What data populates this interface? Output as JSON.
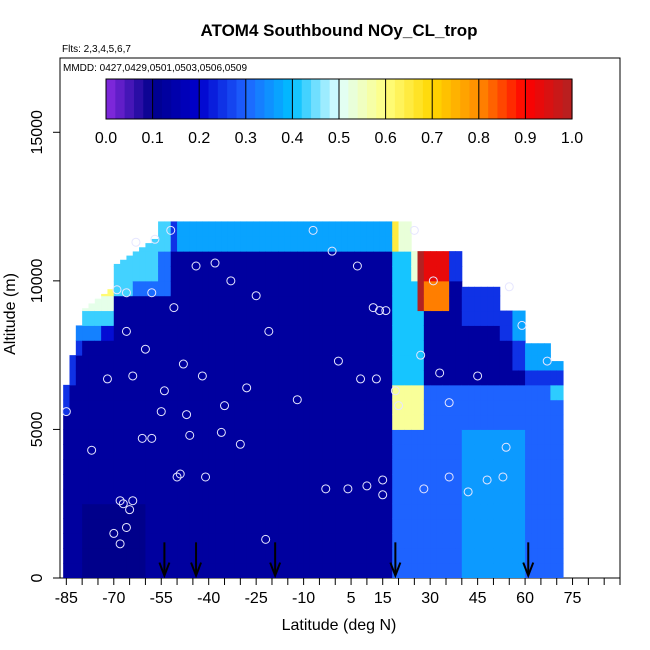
{
  "chart_data": {
    "type": "heatmap",
    "title": "ATOM4 Southbound NOy_CL_trop",
    "subtitle_flights": "Flts: 2,3,4,5,6,7",
    "subtitle_dates": "MMDD: 0427,0429,0501,0503,0506,0509",
    "xlabel": "Latitude (deg N)",
    "ylabel": "Altitude (m)",
    "xlim": [
      -87,
      90
    ],
    "ylim": [
      0,
      17500
    ],
    "x_ticks": [
      -85,
      -70,
      -55,
      -40,
      -25,
      -10,
      5,
      15,
      30,
      45,
      60,
      75
    ],
    "y_ticks": [
      0,
      5000,
      10000,
      15000
    ],
    "colorbar": {
      "range": [
        0.0,
        1.0
      ],
      "ticks": [
        "0.0",
        "0.1",
        "0.2",
        "0.3",
        "0.4",
        "0.5",
        "0.6",
        "0.7",
        "0.8",
        "0.9",
        "1.0"
      ],
      "colors": [
        "#8a2be2",
        "#00008b",
        "#0000cd",
        "#1e63ff",
        "#00bfff",
        "#e0ffff",
        "#ffff80",
        "#ffd700",
        "#ff8c00",
        "#ff0000",
        "#b22222"
      ]
    },
    "arrow_latitudes": [
      -54,
      -44,
      -19,
      19,
      61
    ],
    "sample_points": [
      [
        -85,
        5600
      ],
      [
        -77,
        4300
      ],
      [
        -72,
        6700
      ],
      [
        -70,
        1500
      ],
      [
        -69,
        9700
      ],
      [
        -68,
        1150
      ],
      [
        -68,
        2600
      ],
      [
        -66,
        8300
      ],
      [
        -66,
        9600
      ],
      [
        -67,
        2500
      ],
      [
        -66,
        1700
      ],
      [
        -65,
        2300
      ],
      [
        -64,
        2600
      ],
      [
        -64,
        6800
      ],
      [
        -63,
        11300
      ],
      [
        -61,
        4700
      ],
      [
        -60,
        7700
      ],
      [
        -58,
        9600
      ],
      [
        -58,
        4700
      ],
      [
        -57,
        11400
      ],
      [
        -55,
        5600
      ],
      [
        -54,
        6300
      ],
      [
        -52,
        11700
      ],
      [
        -51,
        9100
      ],
      [
        -50,
        3400
      ],
      [
        -49,
        3500
      ],
      [
        -48,
        7200
      ],
      [
        -47,
        5500
      ],
      [
        -46,
        4800
      ],
      [
        -44,
        10500
      ],
      [
        -42,
        6800
      ],
      [
        -41,
        3400
      ],
      [
        -38,
        10600
      ],
      [
        -36,
        4900
      ],
      [
        -35,
        5800
      ],
      [
        -33,
        10000
      ],
      [
        -30,
        4500
      ],
      [
        -28,
        6400
      ],
      [
        -25,
        9500
      ],
      [
        -22,
        1300
      ],
      [
        -21,
        8300
      ],
      [
        -12,
        6000
      ],
      [
        -7,
        11700
      ],
      [
        -3,
        3000
      ],
      [
        -1,
        11000
      ],
      [
        1,
        7300
      ],
      [
        4,
        3000
      ],
      [
        7,
        10500
      ],
      [
        8,
        6700
      ],
      [
        10,
        3100
      ],
      [
        12,
        9100
      ],
      [
        13,
        6700
      ],
      [
        14,
        9000
      ],
      [
        15,
        2800
      ],
      [
        15,
        3300
      ],
      [
        16,
        9000
      ],
      [
        19,
        6300
      ],
      [
        20,
        5800
      ],
      [
        25,
        11700
      ],
      [
        27,
        7500
      ],
      [
        28,
        3000
      ],
      [
        31,
        10000
      ],
      [
        33,
        6900
      ],
      [
        36,
        5900
      ],
      [
        36,
        3400
      ],
      [
        42,
        2900
      ],
      [
        45,
        6800
      ],
      [
        48,
        3300
      ],
      [
        53,
        3400
      ],
      [
        54,
        4400
      ],
      [
        55,
        9800
      ],
      [
        59,
        8500
      ],
      [
        67,
        7300
      ]
    ]
  }
}
